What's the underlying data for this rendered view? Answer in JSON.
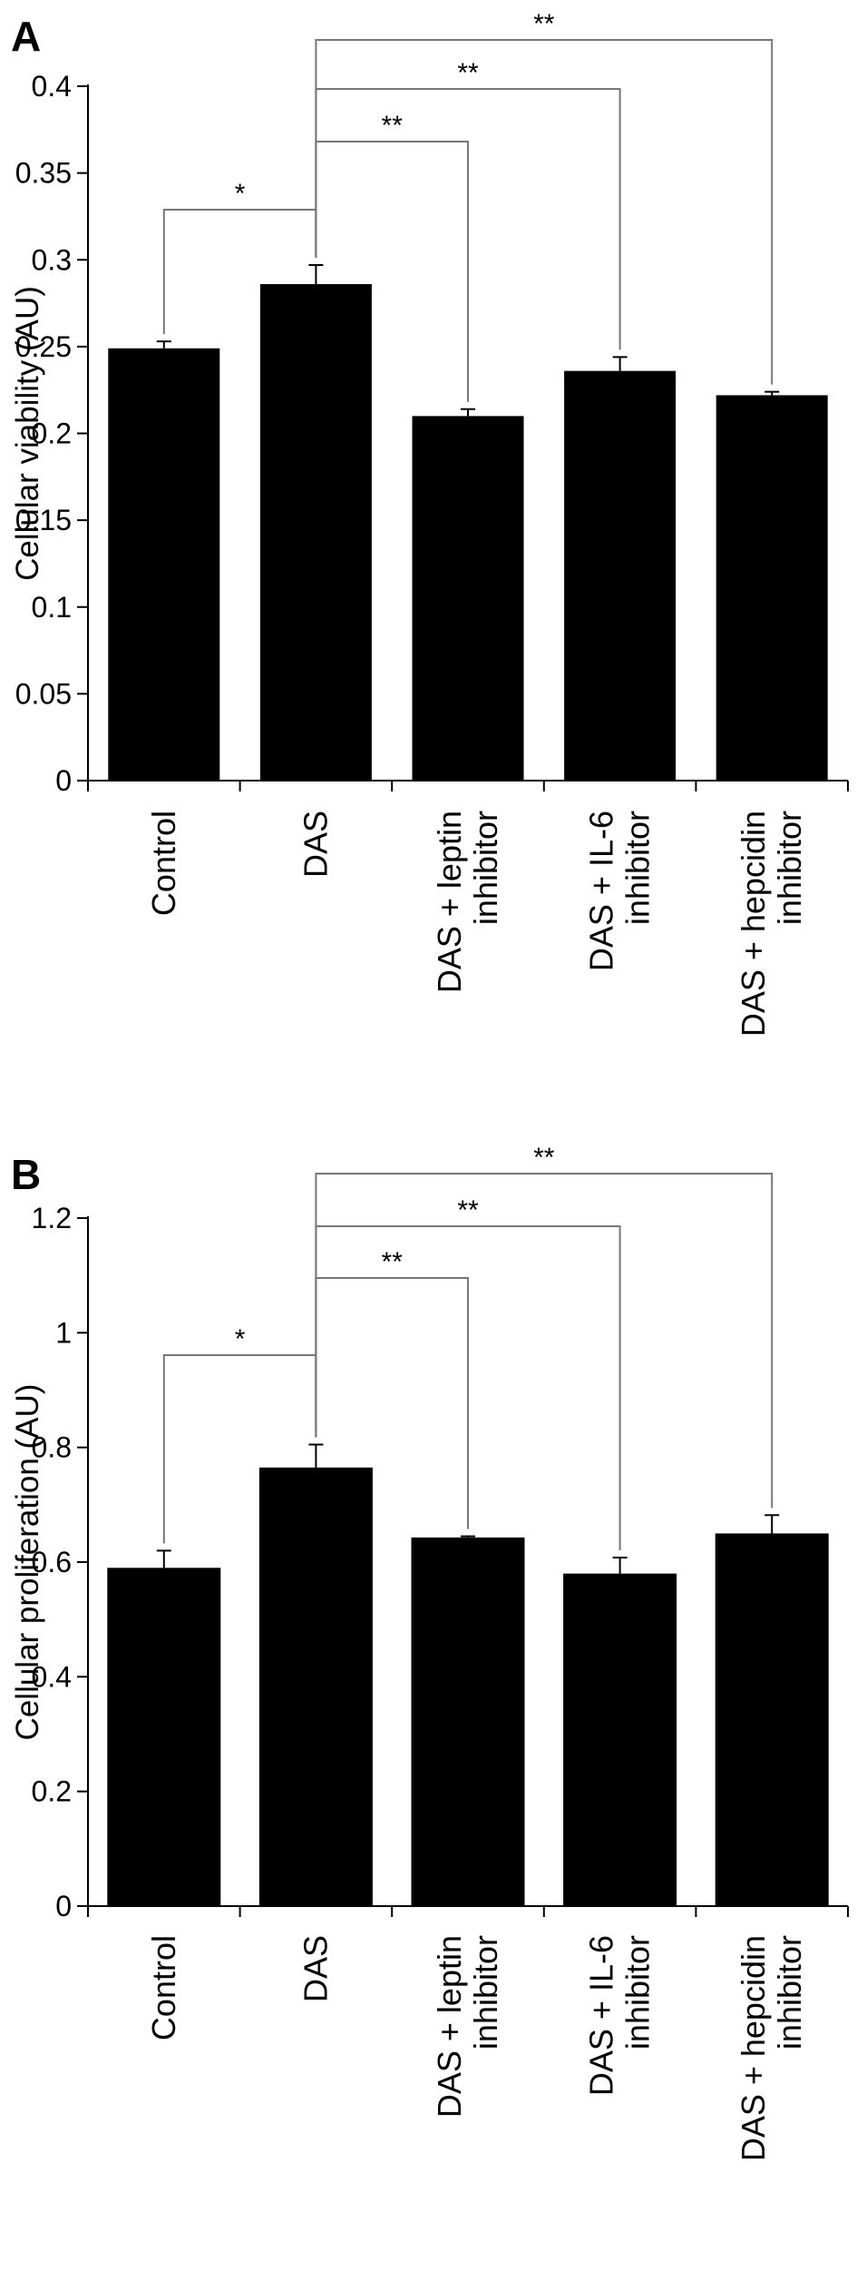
{
  "chart_data": [
    {
      "panel": "A",
      "type": "bar",
      "categories": [
        "Control",
        "DAS",
        "DAS + leptin\ninhibitor",
        "DAS + IL-6\ninhibitor",
        "DAS + hepcidin\ninhibitor"
      ],
      "values": [
        0.249,
        0.286,
        0.21,
        0.236,
        0.222
      ],
      "errors": [
        0.004,
        0.011,
        0.004,
        0.008,
        0.002
      ],
      "ylabel": "Cellular viability (AU)",
      "ylim": [
        0,
        0.4
      ],
      "yticks": [
        "0",
        "0.05",
        "0.1",
        "0.15",
        "0.2",
        "0.25",
        "0.3",
        "0.35",
        "0.4"
      ],
      "bar_color": "#000000",
      "grid": false,
      "annotations": [
        {
          "from": 0,
          "to": 1,
          "label": "*"
        },
        {
          "from": 1,
          "to": 2,
          "label": "**"
        },
        {
          "from": 1,
          "to": 3,
          "label": "**"
        },
        {
          "from": 1,
          "to": 4,
          "label": "**"
        }
      ]
    },
    {
      "panel": "B",
      "type": "bar",
      "categories": [
        "Control",
        "DAS",
        "DAS + leptin\ninhibitor",
        "DAS + IL-6\ninhibitor",
        "DAS + hepcidin\ninhibitor"
      ],
      "values": [
        0.59,
        0.765,
        0.643,
        0.58,
        0.65
      ],
      "errors": [
        0.03,
        0.04,
        0.002,
        0.028,
        0.032
      ],
      "ylabel": "Cellular proliferation (AU)",
      "ylim": [
        0,
        1.2
      ],
      "yticks": [
        "0",
        "0.2",
        "0.4",
        "0.6",
        "0.8",
        "1",
        "1.2"
      ],
      "bar_color": "#000000",
      "grid": false,
      "annotations": [
        {
          "from": 0,
          "to": 1,
          "label": "*"
        },
        {
          "from": 1,
          "to": 2,
          "label": "**"
        },
        {
          "from": 1,
          "to": 3,
          "label": "**"
        },
        {
          "from": 1,
          "to": 4,
          "label": "**"
        }
      ]
    }
  ]
}
